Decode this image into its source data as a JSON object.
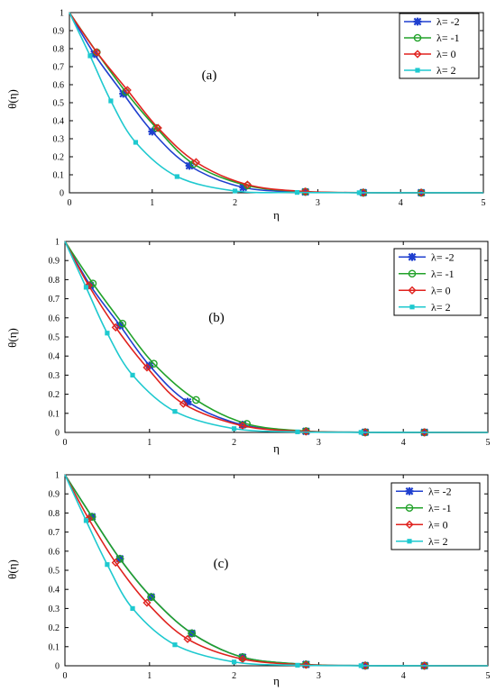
{
  "chart_data": [
    {
      "type": "line",
      "panel_label": "(a)",
      "xlabel": "η",
      "ylabel": "θ(η)",
      "xlim": [
        0,
        5
      ],
      "ylim": [
        0,
        1
      ],
      "xticks": [
        "0",
        "1",
        "2",
        "3",
        "4",
        "5"
      ],
      "yticks": [
        "0",
        "0.1",
        "0.2",
        "0.3",
        "0.4",
        "0.5",
        "0.6",
        "0.7",
        "0.8",
        "0.9",
        "1"
      ],
      "grid": false,
      "legend_position": "top-right",
      "series": [
        {
          "name": "λ= -2",
          "color": "#1f3fcf",
          "marker": "star",
          "x": [
            0,
            0.3,
            0.65,
            1.0,
            1.45,
            2.1,
            2.85,
            3.55,
            4.25,
            5
          ],
          "y": [
            1,
            0.77,
            0.55,
            0.34,
            0.15,
            0.03,
            0.005,
            0.001,
            0.0005,
            0
          ]
        },
        {
          "name": "λ= -1",
          "color": "#22a22a",
          "marker": "circle",
          "x": [
            0,
            0.33,
            0.68,
            1.05,
            1.5,
            2.15,
            2.85,
            3.55,
            4.25,
            5
          ],
          "y": [
            1,
            0.78,
            0.56,
            0.36,
            0.16,
            0.04,
            0.006,
            0.001,
            0.0005,
            0
          ]
        },
        {
          "name": "λ= 0",
          "color": "#e0221e",
          "marker": "diamond",
          "x": [
            0,
            0.33,
            0.7,
            1.07,
            1.53,
            2.15,
            2.85,
            3.55,
            4.25,
            5
          ],
          "y": [
            1,
            0.78,
            0.57,
            0.36,
            0.17,
            0.045,
            0.007,
            0.001,
            0.0005,
            0
          ]
        },
        {
          "name": "λ= 2",
          "color": "#1ec9cf",
          "marker": "square",
          "x": [
            0,
            0.25,
            0.5,
            0.8,
            1.3,
            2.0,
            2.75,
            3.5,
            5
          ],
          "y": [
            1,
            0.76,
            0.51,
            0.28,
            0.09,
            0.01,
            0.002,
            0.0005,
            0
          ]
        }
      ]
    },
    {
      "type": "line",
      "panel_label": "(b)",
      "xlabel": "η",
      "ylabel": "θ(η)",
      "xlim": [
        0,
        5
      ],
      "ylim": [
        0,
        1
      ],
      "xticks": [
        "0",
        "1",
        "2",
        "3",
        "4",
        "5"
      ],
      "yticks": [
        "0",
        "0.1",
        "0.2",
        "0.3",
        "0.4",
        "0.5",
        "0.6",
        "0.7",
        "0.8",
        "0.9",
        "1"
      ],
      "grid": false,
      "legend_position": "top-right",
      "series": [
        {
          "name": "λ= -2",
          "color": "#1f3fcf",
          "marker": "star",
          "x": [
            0,
            0.3,
            0.65,
            1.0,
            1.45,
            2.1,
            2.85,
            3.55,
            4.25,
            5
          ],
          "y": [
            1,
            0.77,
            0.56,
            0.35,
            0.16,
            0.04,
            0.006,
            0.001,
            0.0005,
            0
          ]
        },
        {
          "name": "λ= -1",
          "color": "#22a22a",
          "marker": "circle",
          "x": [
            0,
            0.33,
            0.68,
            1.05,
            1.55,
            2.15,
            2.85,
            3.55,
            4.25,
            5
          ],
          "y": [
            1,
            0.78,
            0.57,
            0.36,
            0.17,
            0.045,
            0.007,
            0.001,
            0.0005,
            0
          ]
        },
        {
          "name": "λ= 0",
          "color": "#e0221e",
          "marker": "diamond",
          "x": [
            0,
            0.28,
            0.6,
            0.97,
            1.4,
            2.1,
            2.85,
            3.55,
            4.25,
            5
          ],
          "y": [
            1,
            0.77,
            0.55,
            0.34,
            0.15,
            0.035,
            0.005,
            0.001,
            0.0005,
            0
          ]
        },
        {
          "name": "λ= 2",
          "color": "#1ec9cf",
          "marker": "square",
          "x": [
            0,
            0.25,
            0.5,
            0.8,
            1.3,
            2.0,
            2.75,
            3.5,
            5
          ],
          "y": [
            1,
            0.76,
            0.52,
            0.3,
            0.11,
            0.02,
            0.003,
            0.0005,
            0
          ]
        }
      ]
    },
    {
      "type": "line",
      "panel_label": "(c)",
      "xlabel": "η",
      "ylabel": "θ(η)",
      "xlim": [
        0,
        5
      ],
      "ylim": [
        0,
        1
      ],
      "xticks": [
        "0",
        "1",
        "2",
        "3",
        "4",
        "5"
      ],
      "yticks": [
        "0",
        "0.1",
        "0.2",
        "0.3",
        "0.4",
        "0.5",
        "0.6",
        "0.7",
        "0.8",
        "0.9",
        "1"
      ],
      "grid": false,
      "legend_position": "top-right",
      "series": [
        {
          "name": "λ= -2",
          "color": "#1f3fcf",
          "marker": "star",
          "x": [
            0,
            0.32,
            0.65,
            1.02,
            1.5,
            2.1,
            2.85,
            3.55,
            4.25,
            5
          ],
          "y": [
            1,
            0.78,
            0.56,
            0.36,
            0.17,
            0.045,
            0.007,
            0.001,
            0.0005,
            0
          ]
        },
        {
          "name": "λ= -1",
          "color": "#22a22a",
          "marker": "circle",
          "x": [
            0,
            0.32,
            0.65,
            1.02,
            1.5,
            2.1,
            2.85,
            3.55,
            4.25,
            5
          ],
          "y": [
            1,
            0.78,
            0.56,
            0.36,
            0.17,
            0.045,
            0.007,
            0.001,
            0.0005,
            0
          ]
        },
        {
          "name": "λ= 0",
          "color": "#e0221e",
          "marker": "diamond",
          "x": [
            0,
            0.28,
            0.6,
            0.97,
            1.45,
            2.1,
            2.85,
            3.55,
            4.25,
            5
          ],
          "y": [
            1,
            0.77,
            0.54,
            0.33,
            0.14,
            0.035,
            0.005,
            0.001,
            0.0005,
            0
          ]
        },
        {
          "name": "λ= 2",
          "color": "#1ec9cf",
          "marker": "square",
          "x": [
            0,
            0.25,
            0.5,
            0.8,
            1.3,
            2.0,
            2.75,
            3.5,
            5
          ],
          "y": [
            1,
            0.76,
            0.53,
            0.3,
            0.11,
            0.02,
            0.003,
            0.0005,
            0
          ]
        }
      ]
    }
  ]
}
